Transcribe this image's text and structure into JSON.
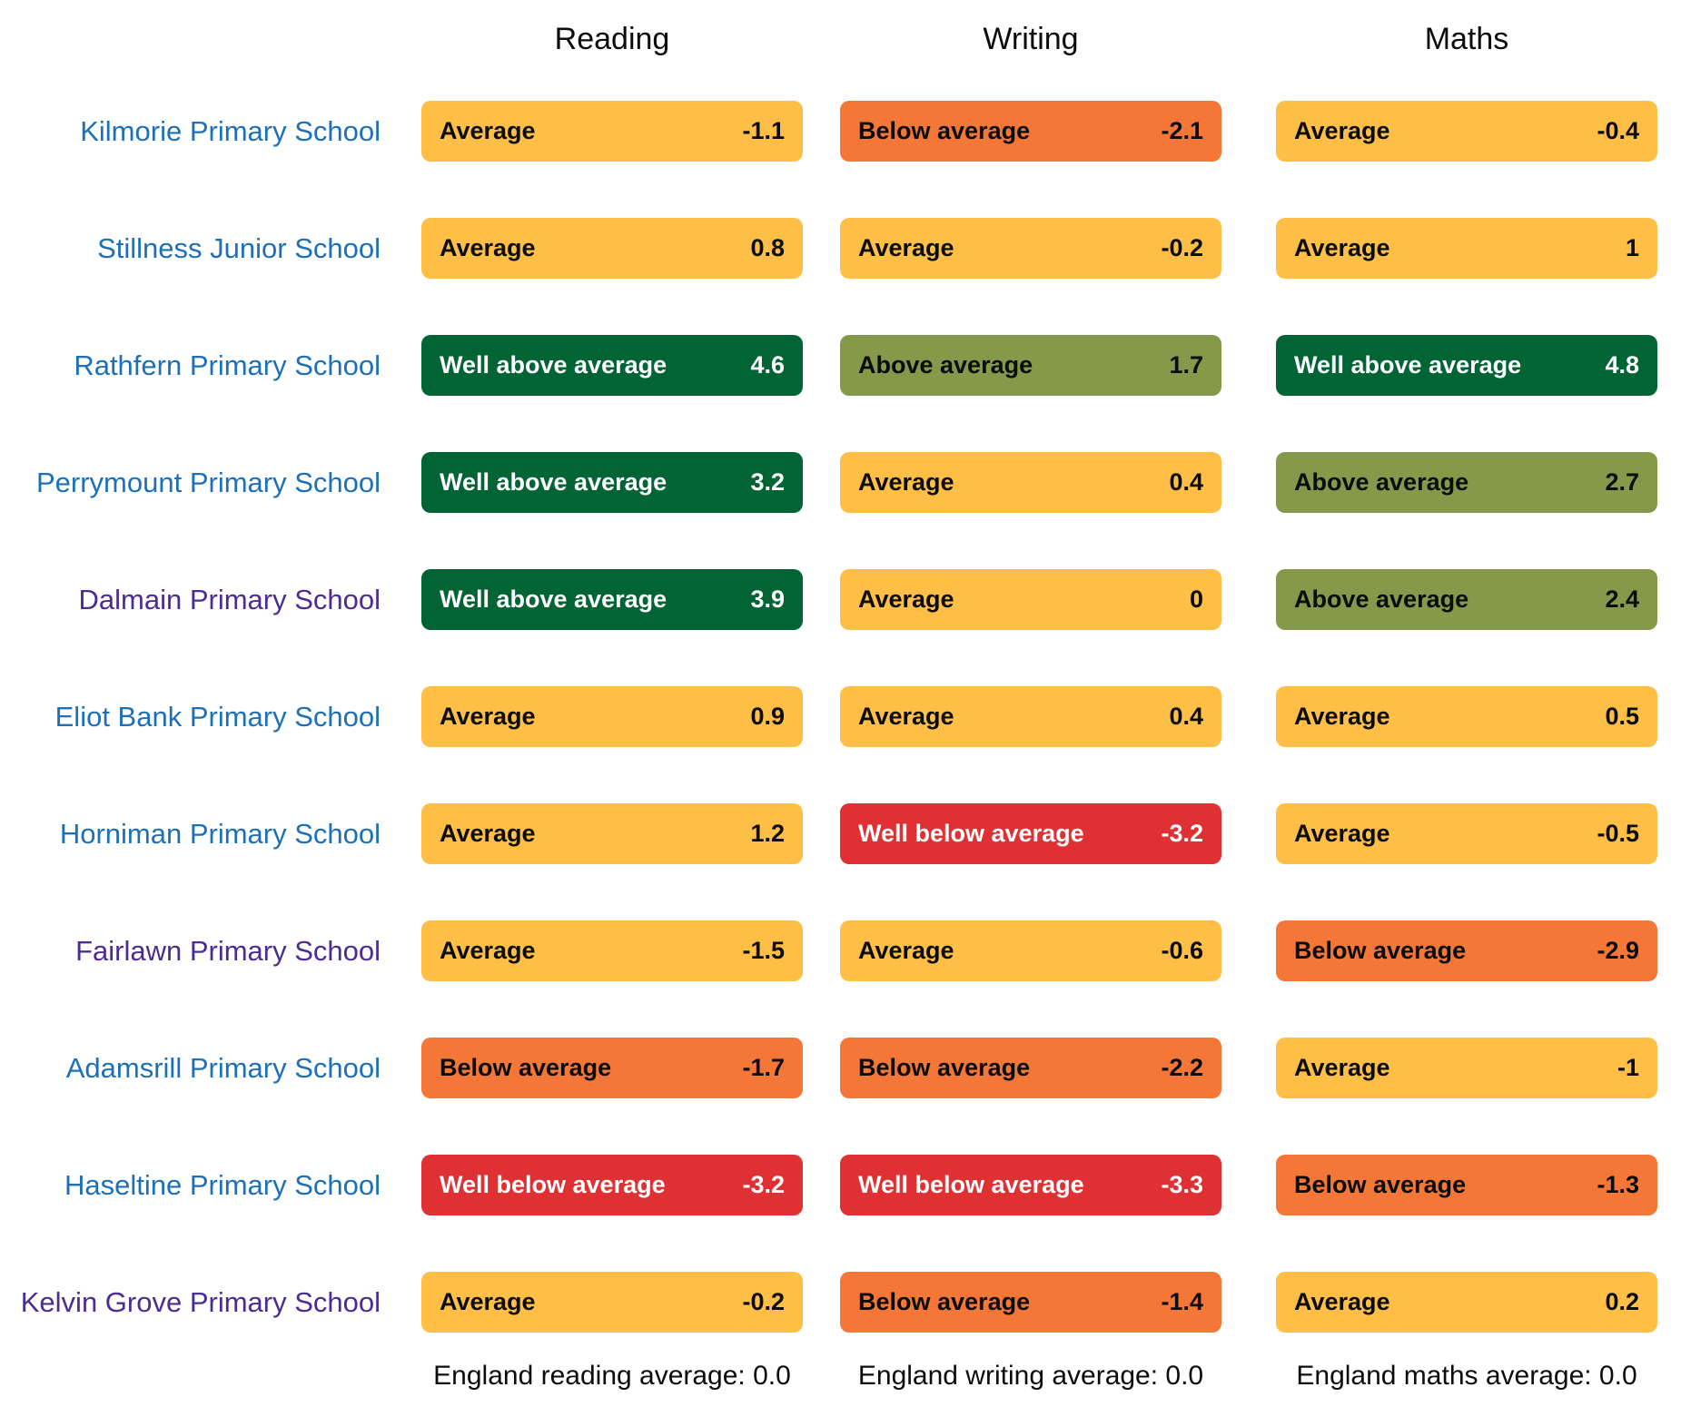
{
  "columns": [
    {
      "label": "Reading"
    },
    {
      "label": "Writing"
    },
    {
      "label": "Maths"
    }
  ],
  "schools": [
    {
      "name": "Kilmorie Primary School",
      "visited": false,
      "reading": {
        "label": "Average",
        "value": "-1.1",
        "band": "average"
      },
      "writing": {
        "label": "Below average",
        "value": "-2.1",
        "band": "below-average"
      },
      "maths": {
        "label": "Average",
        "value": "-0.4",
        "band": "average"
      }
    },
    {
      "name": "Stillness Junior School",
      "visited": false,
      "reading": {
        "label": "Average",
        "value": "0.8",
        "band": "average"
      },
      "writing": {
        "label": "Average",
        "value": "-0.2",
        "band": "average"
      },
      "maths": {
        "label": "Average",
        "value": "1",
        "band": "average"
      }
    },
    {
      "name": "Rathfern Primary School",
      "visited": false,
      "reading": {
        "label": "Well above average",
        "value": "4.6",
        "band": "well-above-average"
      },
      "writing": {
        "label": "Above average",
        "value": "1.7",
        "band": "above-average"
      },
      "maths": {
        "label": "Well above average",
        "value": "4.8",
        "band": "well-above-average"
      }
    },
    {
      "name": "Perrymount Primary School",
      "visited": false,
      "reading": {
        "label": "Well above average",
        "value": "3.2",
        "band": "well-above-average"
      },
      "writing": {
        "label": "Average",
        "value": "0.4",
        "band": "average"
      },
      "maths": {
        "label": "Above average",
        "value": "2.7",
        "band": "above-average"
      }
    },
    {
      "name": "Dalmain Primary School",
      "visited": true,
      "reading": {
        "label": "Well above average",
        "value": "3.9",
        "band": "well-above-average"
      },
      "writing": {
        "label": "Average",
        "value": "0",
        "band": "average"
      },
      "maths": {
        "label": "Above average",
        "value": "2.4",
        "band": "above-average"
      }
    },
    {
      "name": "Eliot Bank Primary School",
      "visited": false,
      "reading": {
        "label": "Average",
        "value": "0.9",
        "band": "average"
      },
      "writing": {
        "label": "Average",
        "value": "0.4",
        "band": "average"
      },
      "maths": {
        "label": "Average",
        "value": "0.5",
        "band": "average"
      }
    },
    {
      "name": "Horniman Primary School",
      "visited": false,
      "reading": {
        "label": "Average",
        "value": "1.2",
        "band": "average"
      },
      "writing": {
        "label": "Well below average",
        "value": "-3.2",
        "band": "well-below-average"
      },
      "maths": {
        "label": "Average",
        "value": "-0.5",
        "band": "average"
      }
    },
    {
      "name": "Fairlawn Primary School",
      "visited": true,
      "reading": {
        "label": "Average",
        "value": "-1.5",
        "band": "average"
      },
      "writing": {
        "label": "Average",
        "value": "-0.6",
        "band": "average"
      },
      "maths": {
        "label": "Below average",
        "value": "-2.9",
        "band": "below-average"
      }
    },
    {
      "name": "Adamsrill Primary School",
      "visited": false,
      "reading": {
        "label": "Below average",
        "value": "-1.7",
        "band": "below-average"
      },
      "writing": {
        "label": "Below average",
        "value": "-2.2",
        "band": "below-average"
      },
      "maths": {
        "label": "Average",
        "value": "-1",
        "band": "average"
      }
    },
    {
      "name": "Haseltine Primary School",
      "visited": false,
      "reading": {
        "label": "Well below average",
        "value": "-3.2",
        "band": "well-below-average"
      },
      "writing": {
        "label": "Well below average",
        "value": "-3.3",
        "band": "well-below-average"
      },
      "maths": {
        "label": "Below average",
        "value": "-1.3",
        "band": "below-average"
      }
    },
    {
      "name": "Kelvin Grove Primary School",
      "visited": true,
      "reading": {
        "label": "Average",
        "value": "-0.2",
        "band": "average"
      },
      "writing": {
        "label": "Below average",
        "value": "-1.4",
        "band": "below-average"
      },
      "maths": {
        "label": "Average",
        "value": "0.2",
        "band": "average"
      }
    }
  ],
  "footnotes": {
    "reading": "England reading average: 0.0",
    "writing": "England writing average: 0.0",
    "maths": "England maths average: 0.0"
  },
  "colors": {
    "well_above_average": "#006435",
    "above_average": "#85994b",
    "average": "#ffbf47",
    "below_average": "#f47738",
    "well_below_average": "#df3034",
    "link_blue": "#1d70b8",
    "link_visited_purple": "#4c2c92",
    "text": "#0b0c0c"
  }
}
